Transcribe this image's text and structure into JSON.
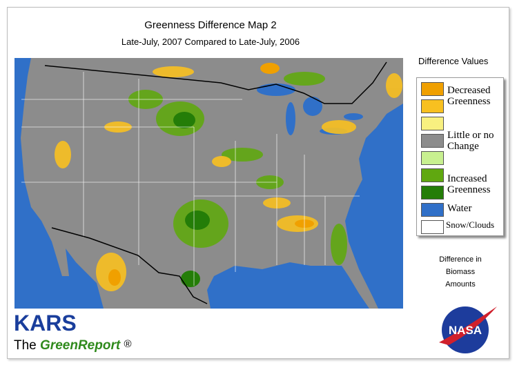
{
  "header": {
    "title": "Greenness Difference Map 2",
    "subtitle": "Late-July, 2007 Compared to Late-July, 2006"
  },
  "legend": {
    "title": "Difference Values",
    "swatches": [
      "#f0a000",
      "#f8c020",
      "#f8f080",
      "#8c8c8c",
      "#c8f090",
      "#60a810",
      "#247d08",
      "#3070c8",
      "#ffffff"
    ],
    "labels": [
      "Decreased Greenness",
      "Little or no Change",
      "Increased Greenness",
      "Water",
      "Snow/Clouds"
    ],
    "note": "Difference in Biomass Amounts"
  },
  "brand": {
    "org": "KARS",
    "prefix": "The",
    "name": "GreenReport",
    "mark": "®",
    "logo": "NASA"
  }
}
